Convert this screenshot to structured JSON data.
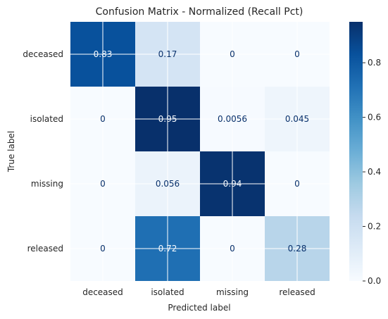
{
  "chart_data": {
    "type": "heatmap",
    "title": "Confusion Matrix - Normalized (Recall Pct)",
    "xlabel": "Predicted label",
    "ylabel": "True label",
    "x_categories": [
      "deceased",
      "isolated",
      "missing",
      "released"
    ],
    "y_categories": [
      "deceased",
      "isolated",
      "missing",
      "released"
    ],
    "values": [
      [
        0.83,
        0.17,
        0,
        0
      ],
      [
        0,
        0.95,
        0.0056,
        0.045
      ],
      [
        0,
        0.056,
        0.94,
        0
      ],
      [
        0,
        0.72,
        0,
        0.28
      ]
    ],
    "cell_labels": [
      [
        "0.83",
        "0.17",
        "0",
        "0"
      ],
      [
        "0",
        "0.95",
        "0.0056",
        "0.045"
      ],
      [
        "0",
        "0.056",
        "0.94",
        "0"
      ],
      [
        "0",
        "0.72",
        "0",
        "0.28"
      ]
    ],
    "colorbar": {
      "colormap": "Blues",
      "range": [
        0.0,
        0.95
      ],
      "ticks": [
        0.0,
        0.2,
        0.4,
        0.6,
        0.8
      ],
      "tick_labels": [
        "0.0",
        "0.2",
        "0.4",
        "0.6",
        "0.8"
      ]
    },
    "grid": true
  }
}
